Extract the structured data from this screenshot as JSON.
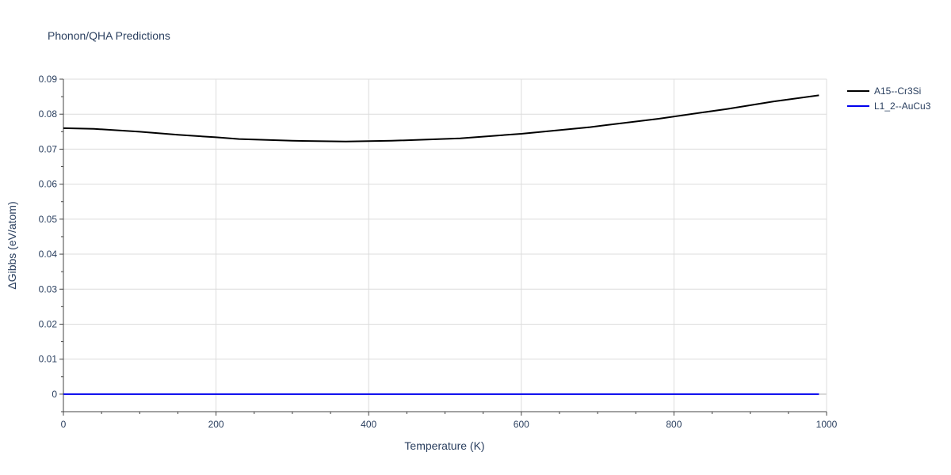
{
  "chart_data": {
    "type": "line",
    "title": "Phonon/QHA Predictions",
    "xlabel": "Temperature (K)",
    "ylabel": "ΔGibbs (eV/atom)",
    "xlim": [
      0,
      1000
    ],
    "ylim": [
      -0.005,
      0.09
    ],
    "x_ticks": [
      0,
      200,
      400,
      600,
      800,
      1000
    ],
    "x_tick_labels": [
      "0",
      "200",
      "400",
      "600",
      "800",
      "1000"
    ],
    "y_ticks": [
      0,
      0.01,
      0.02,
      0.03,
      0.04,
      0.05,
      0.06,
      0.07,
      0.08,
      0.09
    ],
    "y_tick_labels": [
      "0",
      "0.01",
      "0.02",
      "0.03",
      "0.04",
      "0.05",
      "0.06",
      "0.07",
      "0.08",
      "0.09"
    ],
    "grid": true,
    "legend_position": "top-right",
    "series": [
      {
        "name": "A15--Cr3Si",
        "color": "#000000",
        "x": [
          0,
          40,
          100,
          150,
          200,
          230,
          300,
          370,
          430,
          520,
          600,
          690,
          780,
          870,
          930,
          990
        ],
        "y": [
          0.076,
          0.0758,
          0.075,
          0.0741,
          0.0734,
          0.0729,
          0.0724,
          0.0722,
          0.0724,
          0.0731,
          0.0744,
          0.0763,
          0.0787,
          0.0815,
          0.0836,
          0.0854
        ]
      },
      {
        "name": "L1_2--AuCu3",
        "color": "#0000ee",
        "x": [
          0,
          990
        ],
        "y": [
          0,
          0
        ]
      }
    ]
  }
}
